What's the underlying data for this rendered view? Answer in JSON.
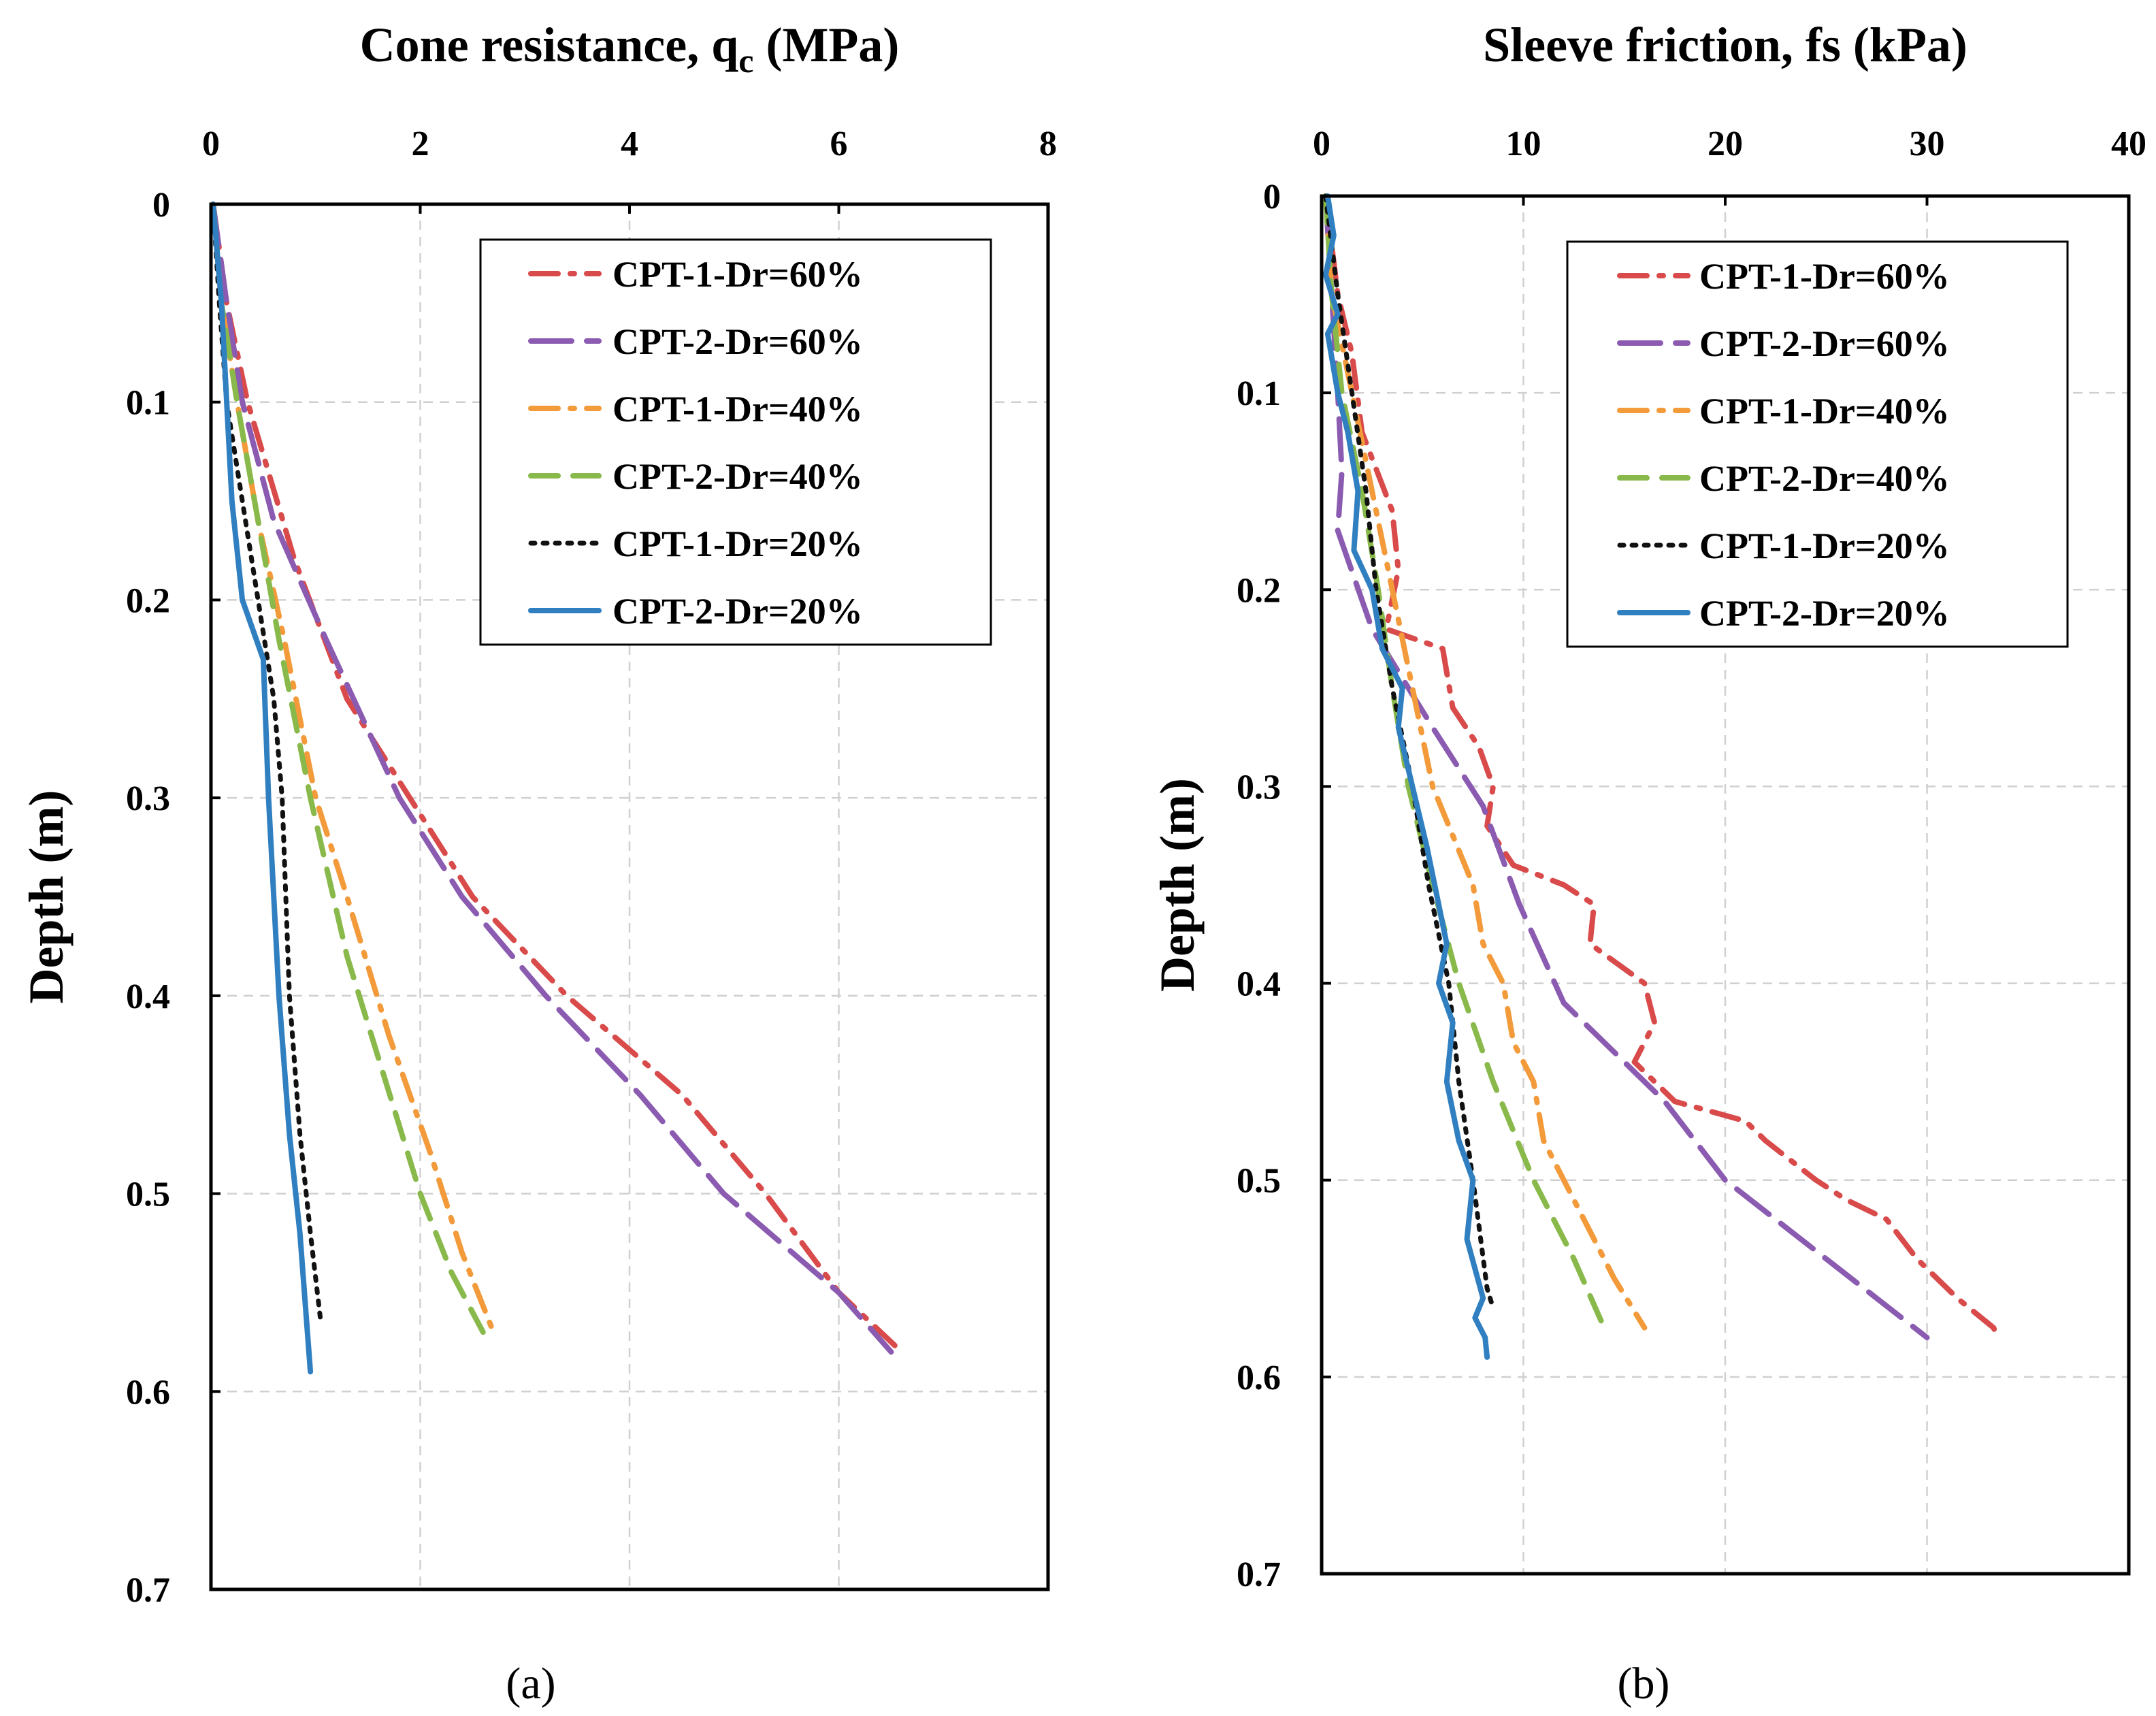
{
  "chart_data": [
    {
      "type": "line",
      "title": "Cone resistance, q",
      "title_subscript": "c",
      "title_unit": " (MPa)",
      "ylabel": "Depth (m)",
      "panel_label": "(a)",
      "xlim": [
        0,
        8
      ],
      "ylim": [
        0,
        0.7
      ],
      "x_ticks": [
        "0",
        "2",
        "4",
        "6",
        "8"
      ],
      "y_ticks": [
        "0",
        "0.1",
        "0.2",
        "0.3",
        "0.4",
        "0.5",
        "0.6",
        "0.7"
      ],
      "grid": true,
      "legend_position": "top-right",
      "series": [
        {
          "name": "CPT-1-Dr=60%",
          "color": "#d94a4a",
          "dash": "dash-dot",
          "points": [
            [
              0.02,
              0
            ],
            [
              0.15,
              0.05
            ],
            [
              0.35,
              0.1
            ],
            [
              0.8,
              0.18
            ],
            [
              1.3,
              0.25
            ],
            [
              1.9,
              0.3
            ],
            [
              2.5,
              0.35
            ],
            [
              3.4,
              0.4
            ],
            [
              4.5,
              0.45
            ],
            [
              5.3,
              0.5
            ],
            [
              6.0,
              0.55
            ],
            [
              6.6,
              0.58
            ]
          ]
        },
        {
          "name": "CPT-2-Dr=60%",
          "color": "#8a5bb0",
          "dash": "long-dash",
          "points": [
            [
              0.02,
              0
            ],
            [
              0.15,
              0.05
            ],
            [
              0.3,
              0.1
            ],
            [
              0.6,
              0.16
            ],
            [
              1.1,
              0.22
            ],
            [
              1.8,
              0.3
            ],
            [
              2.4,
              0.35
            ],
            [
              3.2,
              0.4
            ],
            [
              4.1,
              0.45
            ],
            [
              4.9,
              0.5
            ],
            [
              6.0,
              0.55
            ],
            [
              6.5,
              0.58
            ]
          ]
        },
        {
          "name": "CPT-1-Dr=40%",
          "color": "#f39a3a",
          "dash": "dash-dot",
          "points": [
            [
              0.02,
              0
            ],
            [
              0.1,
              0.05
            ],
            [
              0.25,
              0.1
            ],
            [
              0.45,
              0.16
            ],
            [
              0.7,
              0.22
            ],
            [
              1.0,
              0.3
            ],
            [
              1.3,
              0.35
            ],
            [
              1.7,
              0.42
            ],
            [
              2.1,
              0.48
            ],
            [
              2.4,
              0.53
            ],
            [
              2.7,
              0.57
            ]
          ]
        },
        {
          "name": "CPT-2-Dr=40%",
          "color": "#88b94a",
          "dash": "dash",
          "points": [
            [
              0.02,
              0
            ],
            [
              0.1,
              0.05
            ],
            [
              0.25,
              0.1
            ],
            [
              0.45,
              0.16
            ],
            [
              0.65,
              0.22
            ],
            [
              0.95,
              0.3
            ],
            [
              1.3,
              0.38
            ],
            [
              1.65,
              0.44
            ],
            [
              2.0,
              0.5
            ],
            [
              2.3,
              0.54
            ],
            [
              2.6,
              0.57
            ]
          ]
        },
        {
          "name": "CPT-1-Dr=20%",
          "color": "#111111",
          "dash": "dot",
          "points": [
            [
              0.02,
              0
            ],
            [
              0.08,
              0.05
            ],
            [
              0.15,
              0.1
            ],
            [
              0.3,
              0.15
            ],
            [
              0.45,
              0.2
            ],
            [
              0.6,
              0.25
            ],
            [
              0.68,
              0.3
            ],
            [
              0.75,
              0.4
            ],
            [
              0.85,
              0.47
            ],
            [
              0.95,
              0.52
            ],
            [
              1.05,
              0.565
            ]
          ]
        },
        {
          "name": "CPT-2-Dr=20%",
          "color": "#2f7fc1",
          "dash": "solid",
          "points": [
            [
              0.02,
              0
            ],
            [
              0.1,
              0.05
            ],
            [
              0.15,
              0.1
            ],
            [
              0.2,
              0.15
            ],
            [
              0.3,
              0.2
            ],
            [
              0.5,
              0.23
            ],
            [
              0.55,
              0.3
            ],
            [
              0.65,
              0.4
            ],
            [
              0.75,
              0.47
            ],
            [
              0.85,
              0.52
            ],
            [
              0.95,
              0.59
            ]
          ]
        }
      ]
    },
    {
      "type": "line",
      "title": "Sleeve friction, fs  (kPa)",
      "ylabel": "Depth (m)",
      "panel_label": "(b)",
      "xlim": [
        0,
        40
      ],
      "ylim": [
        0,
        0.7
      ],
      "x_ticks": [
        "0",
        "10",
        "20",
        "30",
        "40"
      ],
      "y_ticks": [
        "0",
        "0.1",
        "0.2",
        "0.3",
        "0.4",
        "0.5",
        "0.6",
        "0.7"
      ],
      "grid": true,
      "legend_position": "top-right",
      "series": [
        {
          "name": "CPT-1-Dr=60%",
          "color": "#d94a4a",
          "dash": "dash-dot",
          "points": [
            [
              0.2,
              0
            ],
            [
              0.8,
              0.05
            ],
            [
              1.5,
              0.08
            ],
            [
              2.0,
              0.12
            ],
            [
              3.5,
              0.16
            ],
            [
              3.8,
              0.19
            ],
            [
              3.2,
              0.22
            ],
            [
              6.0,
              0.23
            ],
            [
              6.5,
              0.26
            ],
            [
              7.8,
              0.28
            ],
            [
              8.5,
              0.3
            ],
            [
              8.2,
              0.32
            ],
            [
              9.5,
              0.34
            ],
            [
              12.0,
              0.35
            ],
            [
              13.5,
              0.36
            ],
            [
              13.3,
              0.38
            ],
            [
              16.0,
              0.4
            ],
            [
              16.5,
              0.42
            ],
            [
              15.5,
              0.44
            ],
            [
              17.5,
              0.46
            ],
            [
              21.0,
              0.47
            ],
            [
              22.0,
              0.48
            ],
            [
              24.5,
              0.5
            ],
            [
              26.0,
              0.51
            ],
            [
              28.0,
              0.52
            ],
            [
              29.5,
              0.54
            ],
            [
              31.5,
              0.56
            ],
            [
              33.3,
              0.575
            ],
            [
              33.5,
              0.58
            ]
          ]
        },
        {
          "name": "CPT-2-Dr=60%",
          "color": "#8a5bb0",
          "dash": "long-dash",
          "points": [
            [
              0.2,
              0
            ],
            [
              0.5,
              0.05
            ],
            [
              0.8,
              0.1
            ],
            [
              1.0,
              0.14
            ],
            [
              0.8,
              0.17
            ],
            [
              2.5,
              0.22
            ],
            [
              5.5,
              0.27
            ],
            [
              8.0,
              0.31
            ],
            [
              9.8,
              0.36
            ],
            [
              12.0,
              0.41
            ],
            [
              17.0,
              0.46
            ],
            [
              20.0,
              0.5
            ],
            [
              25.0,
              0.54
            ],
            [
              30.0,
              0.58
            ]
          ]
        },
        {
          "name": "CPT-1-Dr=40%",
          "color": "#f39a3a",
          "dash": "dash-dot",
          "points": [
            [
              0.2,
              0
            ],
            [
              0.5,
              0.05
            ],
            [
              1.5,
              0.1
            ],
            [
              2.5,
              0.15
            ],
            [
              3.5,
              0.2
            ],
            [
              4.5,
              0.25
            ],
            [
              5.5,
              0.3
            ],
            [
              7.5,
              0.35
            ],
            [
              8.0,
              0.38
            ],
            [
              9.0,
              0.4
            ],
            [
              9.5,
              0.43
            ],
            [
              10.5,
              0.45
            ],
            [
              11.0,
              0.48
            ],
            [
              12.5,
              0.51
            ],
            [
              13.5,
              0.53
            ],
            [
              14.5,
              0.55
            ],
            [
              16.0,
              0.575
            ]
          ]
        },
        {
          "name": "CPT-2-Dr=40%",
          "color": "#88b94a",
          "dash": "dash",
          "points": [
            [
              0.2,
              0
            ],
            [
              0.5,
              0.05
            ],
            [
              1.0,
              0.1
            ],
            [
              2.0,
              0.15
            ],
            [
              2.8,
              0.2
            ],
            [
              3.5,
              0.25
            ],
            [
              4.3,
              0.3
            ],
            [
              5.5,
              0.35
            ],
            [
              6.8,
              0.4
            ],
            [
              8.5,
              0.45
            ],
            [
              10.5,
              0.5
            ],
            [
              12.5,
              0.54
            ],
            [
              14.0,
              0.575
            ]
          ]
        },
        {
          "name": "CPT-1-Dr=20%",
          "color": "#111111",
          "dash": "dot",
          "points": [
            [
              0.2,
              0
            ],
            [
              0.8,
              0.05
            ],
            [
              1.5,
              0.1
            ],
            [
              2.2,
              0.15
            ],
            [
              2.7,
              0.2
            ],
            [
              3.5,
              0.25
            ],
            [
              4.5,
              0.3
            ],
            [
              5.3,
              0.35
            ],
            [
              6.3,
              0.4
            ],
            [
              6.8,
              0.45
            ],
            [
              7.5,
              0.5
            ],
            [
              8.2,
              0.555
            ],
            [
              8.5,
              0.565
            ]
          ]
        },
        {
          "name": "CPT-2-Dr=20%",
          "color": "#2f7fc1",
          "dash": "solid",
          "points": [
            [
              0.3,
              0
            ],
            [
              0.6,
              0.02
            ],
            [
              0.2,
              0.04
            ],
            [
              0.8,
              0.06
            ],
            [
              0.3,
              0.07
            ],
            [
              0.8,
              0.1
            ],
            [
              1.3,
              0.12
            ],
            [
              1.8,
              0.15
            ],
            [
              1.6,
              0.18
            ],
            [
              2.5,
              0.2
            ],
            [
              3.0,
              0.23
            ],
            [
              4.0,
              0.25
            ],
            [
              3.8,
              0.27
            ],
            [
              4.5,
              0.3
            ],
            [
              5.2,
              0.33
            ],
            [
              5.8,
              0.36
            ],
            [
              6.2,
              0.38
            ],
            [
              5.8,
              0.4
            ],
            [
              6.5,
              0.42
            ],
            [
              6.2,
              0.45
            ],
            [
              6.8,
              0.48
            ],
            [
              7.5,
              0.5
            ],
            [
              7.2,
              0.53
            ],
            [
              8.0,
              0.56
            ],
            [
              7.6,
              0.57
            ],
            [
              8.1,
              0.58
            ],
            [
              8.2,
              0.59
            ]
          ]
        }
      ]
    }
  ]
}
